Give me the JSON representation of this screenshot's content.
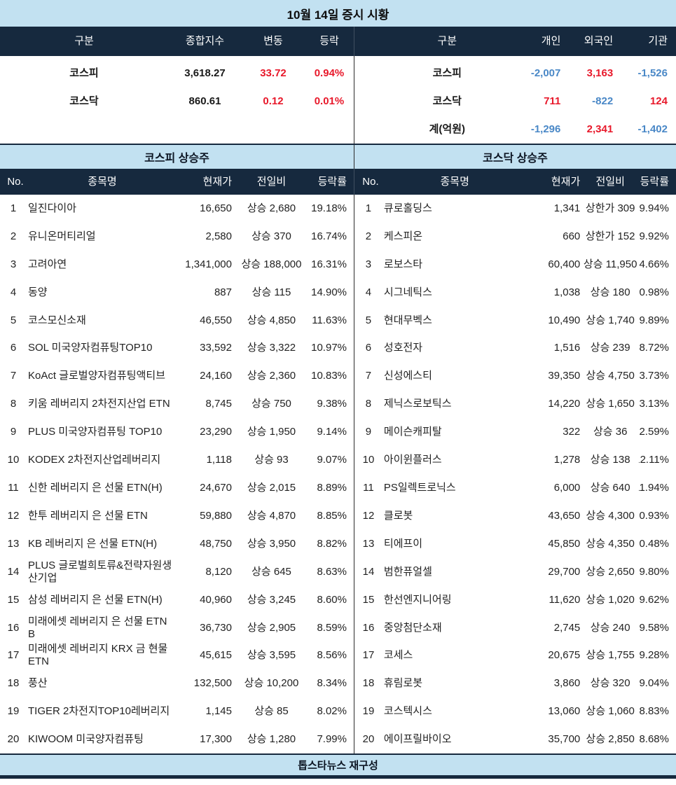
{
  "title": "10월 14일 증시 시황",
  "footer": "톱스타뉴스 재구성",
  "colors": {
    "header_bg": "#16293e",
    "band_bg": "#c2e1f1",
    "up_red": "#e8192b",
    "down_blue": "#4a88c7"
  },
  "chart_data": [
    {
      "type": "table",
      "name": "index_summary",
      "columns": [
        "구분",
        "종합지수",
        "변동",
        "등락"
      ],
      "rows": [
        [
          "코스피",
          "3,618.27",
          "33.72",
          "0.94%"
        ],
        [
          "코스닥",
          "860.61",
          "0.12",
          "0.01%"
        ]
      ]
    },
    {
      "type": "table",
      "name": "investor_net_trading",
      "columns": [
        "구분",
        "개인",
        "외국인",
        "기관"
      ],
      "rows": [
        [
          "코스피",
          "-2,007",
          "3,163",
          "-1,526"
        ],
        [
          "코스닥",
          "711",
          "-822",
          "124"
        ],
        [
          "계(억원)",
          "-1,296",
          "2,341",
          "-1,402"
        ]
      ]
    },
    {
      "type": "table",
      "name": "kospi_gainers",
      "title": "코스피 상승주",
      "columns": [
        "No.",
        "종목명",
        "현재가",
        "전일비",
        "등락률"
      ],
      "rows": [
        [
          "1",
          "일진다이아",
          "16,650",
          "상승 2,680",
          "19.18%"
        ],
        [
          "2",
          "유니온머티리얼",
          "2,580",
          "상승 370",
          "16.74%"
        ],
        [
          "3",
          "고려아연",
          "1,341,000",
          "상승 188,000",
          "16.31%"
        ],
        [
          "4",
          "동양",
          "887",
          "상승 115",
          "14.90%"
        ],
        [
          "5",
          "코스모신소재",
          "46,550",
          "상승 4,850",
          "11.63%"
        ],
        [
          "6",
          "SOL 미국양자컴퓨팅TOP10",
          "33,592",
          "상승 3,322",
          "10.97%"
        ],
        [
          "7",
          "KoAct 글로벌양자컴퓨팅액티브",
          "24,160",
          "상승 2,360",
          "10.83%"
        ],
        [
          "8",
          "키움 레버리지 2차전지산업 ETN",
          "8,745",
          "상승 750",
          "9.38%"
        ],
        [
          "9",
          "PLUS 미국양자컴퓨팅 TOP10",
          "23,290",
          "상승 1,950",
          "9.14%"
        ],
        [
          "10",
          "KODEX 2차전지산업레버리지",
          "1,118",
          "상승 93",
          "9.07%"
        ],
        [
          "11",
          "신한 레버리지 은 선물 ETN(H)",
          "24,670",
          "상승 2,015",
          "8.89%"
        ],
        [
          "12",
          "한투 레버리지 은 선물 ETN",
          "59,880",
          "상승 4,870",
          "8.85%"
        ],
        [
          "13",
          "KB 레버리지 은 선물 ETN(H)",
          "48,750",
          "상승 3,950",
          "8.82%"
        ],
        [
          "14",
          "PLUS 글로벌희토류&전략자원생산기업",
          "8,120",
          "상승 645",
          "8.63%"
        ],
        [
          "15",
          "삼성 레버리지 은 선물 ETN(H)",
          "40,960",
          "상승 3,245",
          "8.60%"
        ],
        [
          "16",
          "미래에셋 레버리지 은 선물 ETN B",
          "36,730",
          "상승 2,905",
          "8.59%"
        ],
        [
          "17",
          "미래에셋 레버리지 KRX 금 현물 ETN",
          "45,615",
          "상승 3,595",
          "8.56%"
        ],
        [
          "18",
          "풍산",
          "132,500",
          "상승 10,200",
          "8.34%"
        ],
        [
          "19",
          "TIGER 2차전지TOP10레버리지",
          "1,145",
          "상승 85",
          "8.02%"
        ],
        [
          "20",
          "KIWOOM 미국양자컴퓨팅",
          "17,300",
          "상승 1,280",
          "7.99%"
        ]
      ]
    },
    {
      "type": "table",
      "name": "kosdaq_gainers",
      "title": "코스닥 상승주",
      "columns": [
        "No.",
        "종목명",
        "현재가",
        "전일비",
        "등락률"
      ],
      "rows": [
        [
          "1",
          "큐로홀딩스",
          "1,341",
          "상한가 309",
          "29.94%"
        ],
        [
          "2",
          "케스피온",
          "660",
          "상한가 152",
          "29.92%"
        ],
        [
          "3",
          "로보스타",
          "60,400",
          "상승 11,950",
          "24.66%"
        ],
        [
          "4",
          "시그네틱스",
          "1,038",
          "상승 180",
          "20.98%"
        ],
        [
          "5",
          "현대무벡스",
          "10,490",
          "상승 1,740",
          "19.89%"
        ],
        [
          "6",
          "성호전자",
          "1,516",
          "상승 239",
          "18.72%"
        ],
        [
          "7",
          "신성에스티",
          "39,350",
          "상승 4,750",
          "13.73%"
        ],
        [
          "8",
          "제닉스로보틱스",
          "14,220",
          "상승 1,650",
          "13.13%"
        ],
        [
          "9",
          "메이슨캐피탈",
          "322",
          "상승 36",
          "12.59%"
        ],
        [
          "10",
          "아이윈플러스",
          "1,278",
          "상승 138",
          "12.11%"
        ],
        [
          "11",
          "PS일렉트로닉스",
          "6,000",
          "상승 640",
          "11.94%"
        ],
        [
          "12",
          "클로봇",
          "43,650",
          "상승 4,300",
          "10.93%"
        ],
        [
          "13",
          "티에프이",
          "45,850",
          "상승 4,350",
          "10.48%"
        ],
        [
          "14",
          "범한퓨얼셀",
          "29,700",
          "상승 2,650",
          "9.80%"
        ],
        [
          "15",
          "한선엔지니어링",
          "11,620",
          "상승 1,020",
          "9.62%"
        ],
        [
          "16",
          "중앙첨단소재",
          "2,745",
          "상승 240",
          "9.58%"
        ],
        [
          "17",
          "코세스",
          "20,675",
          "상승 1,755",
          "9.28%"
        ],
        [
          "18",
          "휴림로봇",
          "3,860",
          "상승 320",
          "9.04%"
        ],
        [
          "19",
          "코스텍시스",
          "13,060",
          "상승 1,060",
          "8.83%"
        ],
        [
          "20",
          "에이프릴바이오",
          "35,700",
          "상승 2,850",
          "8.68%"
        ]
      ]
    }
  ]
}
